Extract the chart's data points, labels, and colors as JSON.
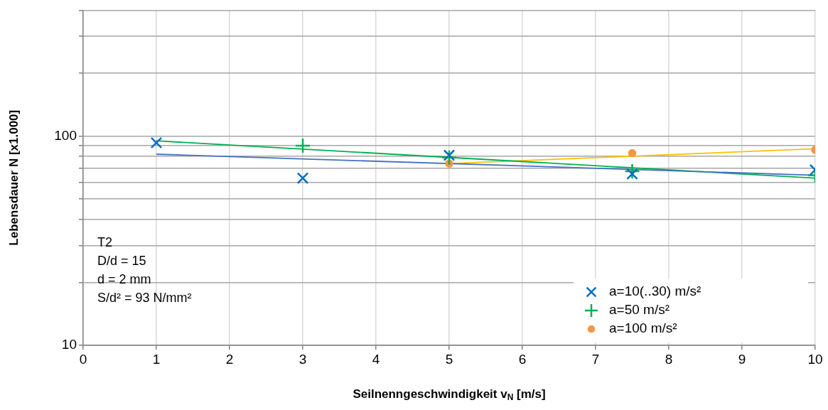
{
  "chart_data": {
    "type": "scatter",
    "xlabel": "Seilnenngeschwindigkeit v$_{N}$ [m/s]",
    "ylabel": "Lebensdauer N [x1.000]",
    "log": "y",
    "grid": true,
    "legend": "bottom right",
    "xlim": [
      0,
      10
    ],
    "xticks": [
      0,
      1,
      2,
      3,
      4,
      5,
      6,
      7,
      8,
      9,
      10
    ],
    "ylim": [
      10,
      400
    ],
    "yticks": [
      10,
      {
        "value": 20,
        "label": null
      },
      {
        "value": 30,
        "label": null
      },
      {
        "value": 40,
        "label": null
      },
      {
        "value": 50,
        "label": null
      },
      {
        "value": 60,
        "label": null
      },
      {
        "value": 70,
        "label": null
      },
      {
        "value": 80,
        "label": null
      },
      {
        "value": 90,
        "label": null
      },
      100,
      {
        "value": 200,
        "label": null
      },
      {
        "value": 300,
        "label": null
      },
      {
        "value": 400,
        "label": null
      }
    ],
    "series": [
      {
        "name": "a=10(..30) m/s²",
        "color": "#0070c0",
        "marker": "cross",
        "x": [
          1,
          3,
          5,
          7.5,
          10
        ],
        "values": [
          93,
          63,
          81,
          66,
          69
        ]
      },
      {
        "name": "a=50 m/s²",
        "color": "#00b050",
        "marker": "plus",
        "x": [
          3,
          5,
          7.5,
          10
        ],
        "values": [
          90,
          79,
          68,
          65
        ]
      },
      {
        "name": "a=100 m/s²",
        "color": "#f79646",
        "marker": "circle",
        "x": [
          5,
          7.5,
          10
        ],
        "values": [
          74,
          83,
          86
        ]
      },
      {
        "type": "line",
        "color": "#4472c4",
        "marker": "none",
        "x": [
          1,
          10
        ],
        "values": [
          82,
          65
        ]
      },
      {
        "type": "line",
        "color": "#00b050",
        "marker": "none",
        "x": [
          1,
          10
        ],
        "values": [
          95,
          63
        ]
      },
      {
        "type": "line",
        "color": "#ffc000",
        "marker": "none",
        "x": [
          5,
          10
        ],
        "values": [
          74,
          87
        ]
      }
    ],
    "annotations": [
      "T2",
      "D/d = 15",
      "d = 2 mm",
      "S/d² = 93 N/mm²"
    ]
  }
}
